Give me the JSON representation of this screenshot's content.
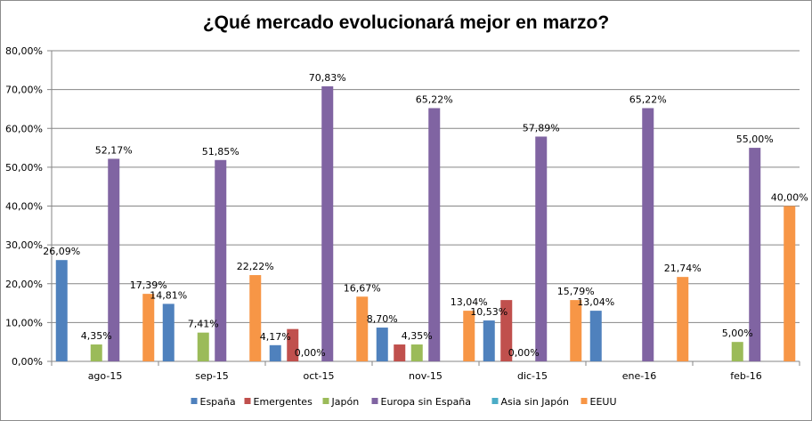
{
  "chart_data": {
    "type": "bar",
    "title": "¿Qué mercado evolucionará mejor en marzo?",
    "xlabel": "",
    "ylabel": "",
    "ylim": [
      0,
      80
    ],
    "y_ticks": [
      "0,00%",
      "10,00%",
      "20,00%",
      "30,00%",
      "40,00%",
      "50,00%",
      "60,00%",
      "70,00%",
      "80,00%"
    ],
    "grid": true,
    "legend_position": "bottom",
    "categories": [
      "ago-15",
      "sep-15",
      "oct-15",
      "nov-15",
      "dic-15",
      "ene-16",
      "feb-16"
    ],
    "series": [
      {
        "name": "España",
        "color": "#4F81BD",
        "values": [
          26.09,
          14.81,
          4.17,
          8.7,
          10.53,
          13.04,
          null
        ],
        "labels": [
          "26,09%",
          "14,81%",
          "4,17%",
          "8,70%",
          "10,53%",
          "13,04%",
          null
        ]
      },
      {
        "name": "Emergentes",
        "color": "#C0504D",
        "values": [
          null,
          null,
          8.33,
          4.35,
          15.79,
          null,
          null
        ],
        "labels": [
          null,
          null,
          null,
          null,
          null,
          null,
          null
        ]
      },
      {
        "name": "Japón",
        "color": "#9BBB59",
        "values": [
          4.35,
          7.41,
          0,
          4.35,
          0,
          null,
          5.0
        ],
        "labels": [
          "4,35%",
          "7,41%",
          "0,00%",
          "4,35%",
          "0,00%",
          null,
          "5,00%"
        ]
      },
      {
        "name": "Europa sin España",
        "color": "#8064A2",
        "values": [
          52.17,
          51.85,
          70.83,
          65.22,
          57.89,
          65.22,
          55.0
        ],
        "labels": [
          "52,17%",
          "51,85%",
          "70,83%",
          "65,22%",
          "57,89%",
          "65,22%",
          "55,00%"
        ]
      },
      {
        "name": "Asia sin Japón",
        "color": "#4BACC6",
        "values": [
          null,
          null,
          null,
          null,
          null,
          null,
          null
        ],
        "labels": [
          null,
          null,
          null,
          null,
          null,
          null,
          null
        ]
      },
      {
        "name": "EEUU",
        "color": "#F79646",
        "values": [
          17.39,
          22.22,
          16.67,
          13.04,
          15.79,
          21.74,
          40.0
        ],
        "labels": [
          "17,39%",
          "22,22%",
          "16,67%",
          "13,04%",
          "15,79%",
          "21,74%",
          "40,00%"
        ]
      }
    ]
  }
}
